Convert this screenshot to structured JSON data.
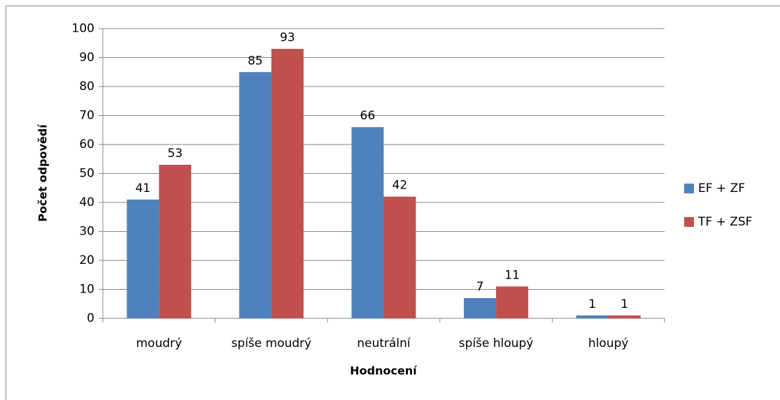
{
  "chart_data": {
    "type": "bar",
    "x_label": "Hodnocení",
    "y_label": "Počet odpovědí",
    "categories": [
      "moudrý",
      "spíše moudrý",
      "neutrální",
      "spíše hloupý",
      "hloupý"
    ],
    "series": [
      {
        "name": "EF + ZF",
        "color": "#4f81bd",
        "values": [
          41,
          85,
          66,
          7,
          1
        ]
      },
      {
        "name": "TF + ZSF",
        "color": "#c0504d",
        "values": [
          53,
          93,
          42,
          11,
          1
        ]
      }
    ],
    "ylim": [
      0,
      100
    ],
    "yticks": [
      0,
      10,
      20,
      30,
      40,
      50,
      60,
      70,
      80,
      90,
      100
    ],
    "grid": true,
    "legend": "right"
  }
}
